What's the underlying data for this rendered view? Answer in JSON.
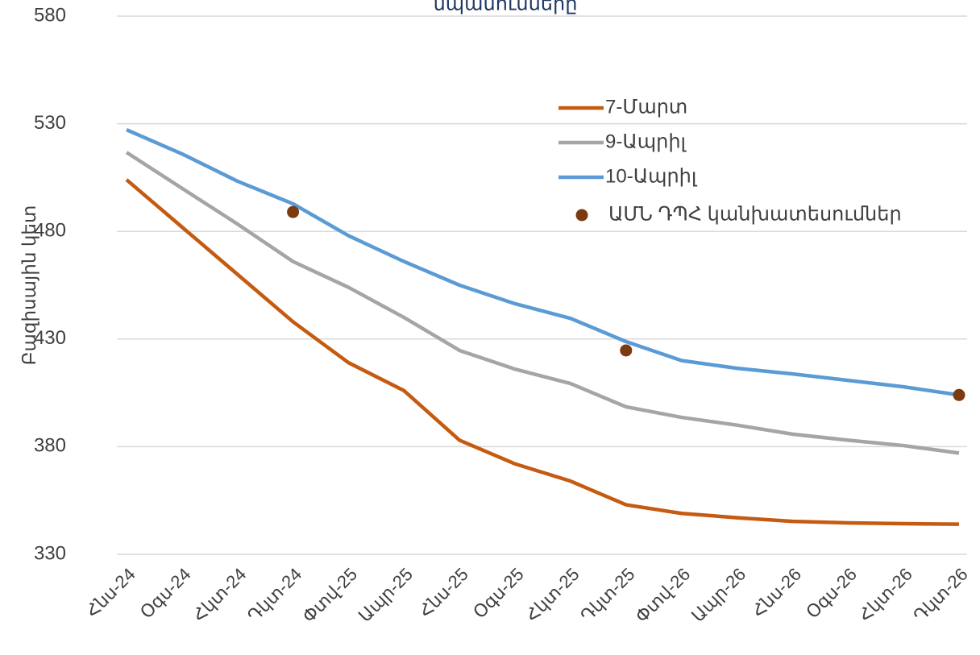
{
  "chart_data": {
    "type": "line",
    "title": "սպասումները",
    "y_label": "Բազիսային կետ",
    "categories": [
      "Հնս-24",
      "Օգս-24",
      "Հկտ-24",
      "Դկտ-24",
      "Փտվ-25",
      "Ապր-25",
      "Հնս-25",
      "Օգս-25",
      "Հկտ-25",
      "Դկտ-25",
      "Փտվ-26",
      "Ապր-26",
      "Հնս-26",
      "Օգս-26",
      "Հկտ-26",
      "Դկտ-26"
    ],
    "series": [
      {
        "name": "7-Մարտ",
        "color": "#c55a11",
        "mode": "line",
        "values": [
          504,
          482,
          460,
          438,
          419,
          406,
          383,
          372,
          364,
          353,
          349,
          347,
          345.3,
          344.6,
          344.2,
          344
        ]
      },
      {
        "name": "9-Ապրիլ",
        "color": "#a5a5a5",
        "mode": "line",
        "values": [
          516.7,
          500,
          483.4,
          466,
          454,
          440,
          424.7,
          416,
          409.3,
          398.5,
          393.6,
          390,
          385.8,
          383,
          380.5,
          377
        ]
      },
      {
        "name": "10-Ապրիլ",
        "color": "#5b9bd5",
        "mode": "line",
        "values": [
          527.2,
          516,
          503.3,
          492.8,
          478,
          466,
          455,
          446.4,
          439.6,
          428.8,
          420,
          416.4,
          413.8,
          410.8,
          407.8,
          404
        ]
      },
      {
        "name": "ԱՄՆ ԴՊՀ կանխատեսումներ",
        "color": "#7b3a10",
        "mode": "markers",
        "values": [
          null,
          null,
          null,
          489,
          null,
          null,
          null,
          null,
          null,
          424.7,
          null,
          null,
          null,
          null,
          null,
          404
        ]
      }
    ],
    "ylim": [
      330,
      580
    ],
    "yticks": [
      330,
      380,
      430,
      480,
      530,
      580
    ],
    "grid": true,
    "legend": "top-right"
  }
}
